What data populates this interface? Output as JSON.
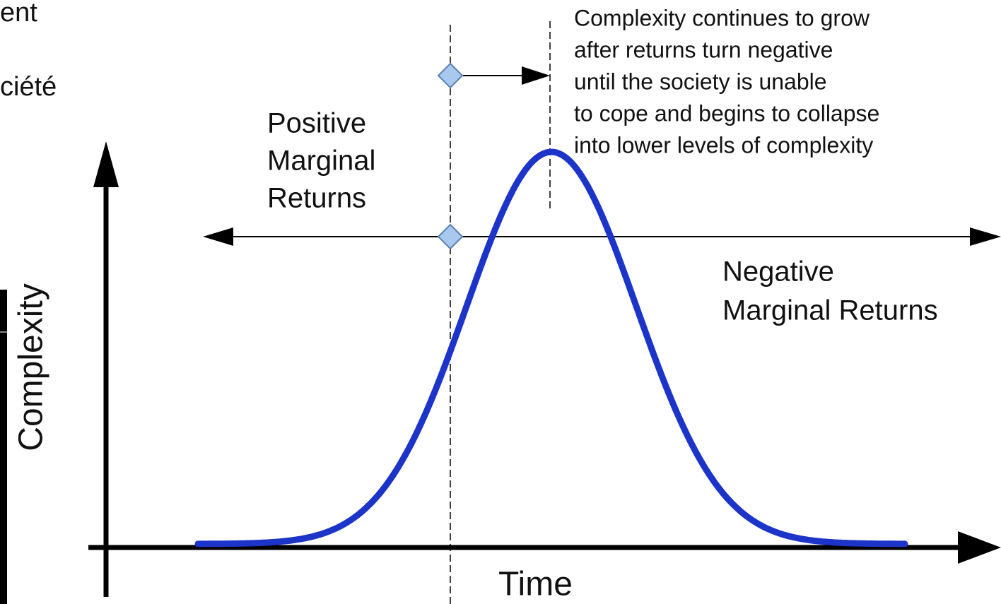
{
  "fragments": [
    "ent",
    "ciété"
  ],
  "y_axis_label": "Complexity",
  "x_axis_label": "Time",
  "positive_label": [
    "Positive",
    "Marginal",
    "Returns"
  ],
  "negative_label": [
    "Negative",
    "Marginal Returns"
  ],
  "annotation": [
    "Complexity continues to grow",
    "after returns turn negative",
    "until the society is unable",
    "to cope and begins to collapse",
    "into lower levels of complexity"
  ]
}
